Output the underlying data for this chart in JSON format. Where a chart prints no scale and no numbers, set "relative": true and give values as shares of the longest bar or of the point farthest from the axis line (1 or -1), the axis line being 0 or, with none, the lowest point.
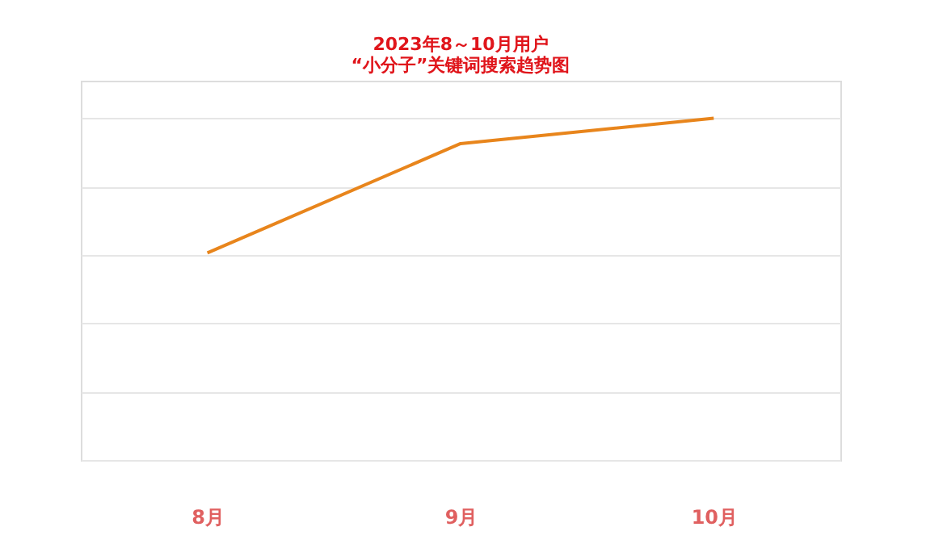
{
  "chart_data": {
    "type": "line",
    "title": [
      "2023年8～10月用户",
      "“小分子”关键词搜索趋势图"
    ],
    "categories": [
      "8月",
      "9月",
      "10月"
    ],
    "relative": true,
    "series": [
      {
        "color": "#e8851c",
        "values": [
          0.606,
          0.926,
          1
        ]
      }
    ],
    "grid": "y",
    "tick_labels": "x",
    "marker": "none",
    "line_style": "solid"
  }
}
